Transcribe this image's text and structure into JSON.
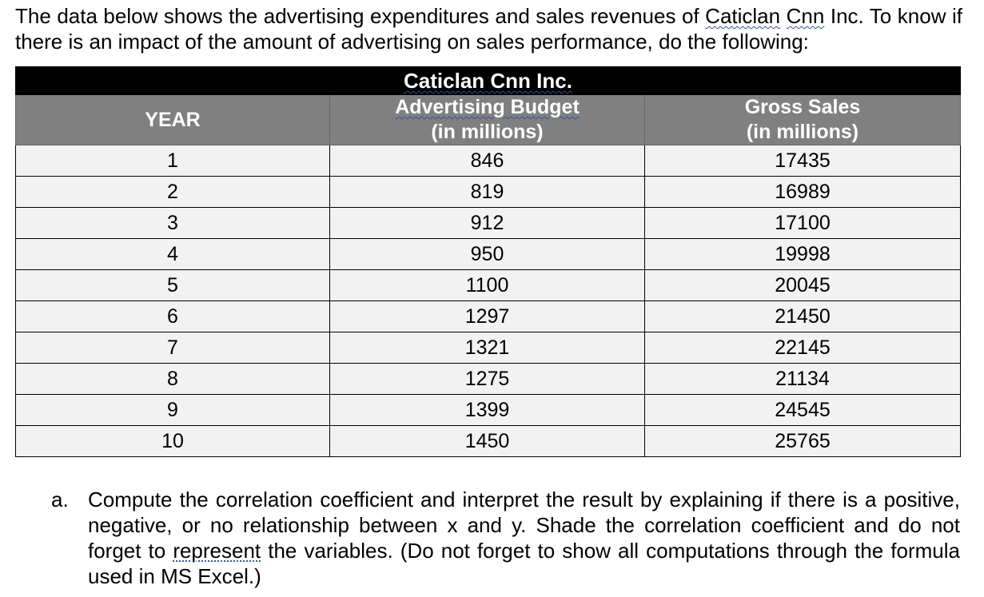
{
  "intro": {
    "part1": "The data below shows the advertising expenditures and sales revenues of ",
    "underlined1": "Caticlan",
    "space": " ",
    "underlined2": "Cnn",
    "part2": " Inc. To know if there is an impact of the amount of advertising on sales performance, do the following:"
  },
  "table": {
    "title": "Caticlan Cnn Inc.",
    "headers": {
      "year": "YEAR",
      "ad_line1": "Advertising Budget",
      "ad_line2": "(in millions)",
      "sales_line1": "Gross Sales",
      "sales_line2": "(in millions)"
    },
    "rows": [
      {
        "year": "1",
        "ad": "846",
        "sales": "17435"
      },
      {
        "year": "2",
        "ad": "819",
        "sales": "16989"
      },
      {
        "year": "3",
        "ad": "912",
        "sales": "17100"
      },
      {
        "year": "4",
        "ad": "950",
        "sales": "19998"
      },
      {
        "year": "5",
        "ad": "1100",
        "sales": "20045"
      },
      {
        "year": "6",
        "ad": "1297",
        "sales": "21450"
      },
      {
        "year": "7",
        "ad": "1321",
        "sales": "22145"
      },
      {
        "year": "8",
        "ad": "1275",
        "sales": "21134"
      },
      {
        "year": "9",
        "ad": "1399",
        "sales": "24545"
      },
      {
        "year": "10",
        "ad": "1450",
        "sales": "25765"
      }
    ]
  },
  "question": {
    "marker": "a.",
    "part1": "Compute the correlation coefficient and interpret the result by explaining if there is a positive, negative, or no relationship between x and y. Shade the correlation coefficient and do not forget to ",
    "underlined": "represent",
    "part2": " the variables. (Do not forget to show all computations through the formula used in MS Excel.)"
  },
  "colors": {
    "title_bg": "#000000",
    "header_bg": "#808080",
    "cell_bg": "#f2f2f2",
    "spellcheck_underline": "#2f5597"
  }
}
